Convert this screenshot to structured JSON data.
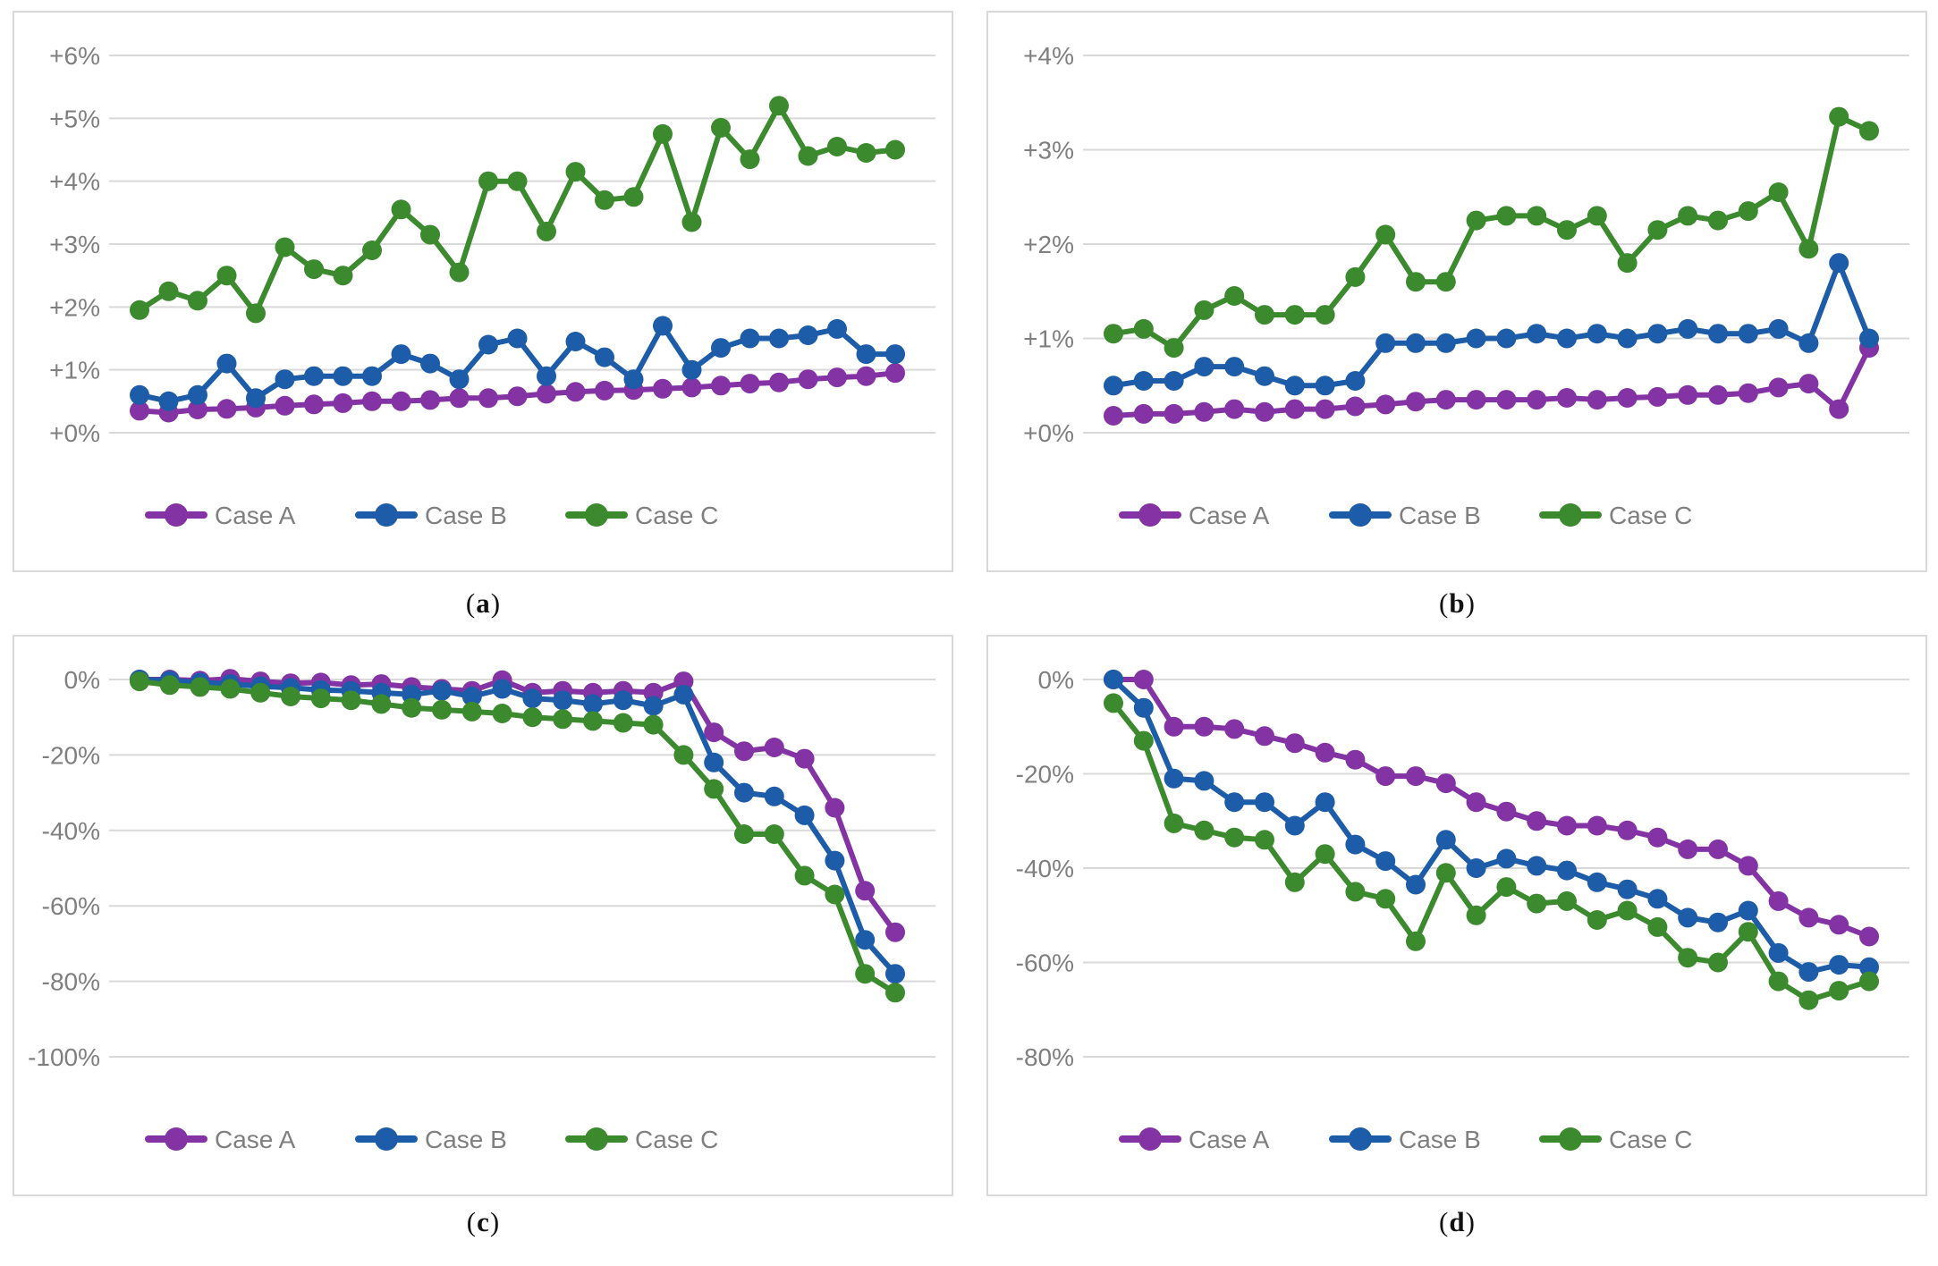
{
  "figure": {
    "description": "Four line charts (a,b,c,d), each comparing Case A, Case B and Case C with percentage change on the y-axis",
    "background_color": "#ffffff",
    "panel_border_color": "#d9d9d9",
    "gridline_color": "#d9d9d9",
    "axis_text_color": "#7f7f7f",
    "caption_color": "#111111",
    "legend_labels": [
      "Case A",
      "Case B",
      "Case C"
    ],
    "series_colors": {
      "case_a": "#8433a4",
      "case_b": "#1c5ca8",
      "case_c": "#3c8a2e"
    }
  },
  "chart_data": [
    {
      "type": "line",
      "caption_letter": "a",
      "title": "",
      "xlabel": "",
      "ylabel": "",
      "x_axis": "hidden (sequence index 1-27)",
      "grid": "horizontal only",
      "legend_position": "bottom-center",
      "y_ticks": [
        "+6%",
        "+5%",
        "+4%",
        "+3%",
        "+2%",
        "+1%",
        "+0%"
      ],
      "y_tick_values": [
        6,
        5,
        4,
        3,
        2,
        1,
        0
      ],
      "ylim": [
        0,
        6
      ],
      "series": [
        {
          "name": "Case A",
          "color": "#8433a4",
          "values": [
            0.35,
            0.32,
            0.37,
            0.38,
            0.4,
            0.43,
            0.45,
            0.47,
            0.5,
            0.5,
            0.52,
            0.55,
            0.55,
            0.58,
            0.62,
            0.65,
            0.67,
            0.68,
            0.7,
            0.72,
            0.75,
            0.78,
            0.8,
            0.85,
            0.88,
            0.9,
            0.95
          ]
        },
        {
          "name": "Case B",
          "color": "#1c5ca8",
          "values": [
            0.6,
            0.5,
            0.6,
            1.1,
            0.55,
            0.85,
            0.9,
            0.9,
            0.9,
            1.25,
            1.1,
            0.85,
            1.4,
            1.5,
            0.9,
            1.45,
            1.2,
            0.85,
            1.7,
            1.0,
            1.35,
            1.5,
            1.5,
            1.55,
            1.65,
            1.25,
            1.25
          ]
        },
        {
          "name": "Case C",
          "color": "#3c8a2e",
          "values": [
            1.95,
            2.25,
            2.1,
            2.5,
            1.9,
            2.95,
            2.6,
            2.5,
            2.9,
            3.55,
            3.15,
            2.55,
            4.0,
            4.0,
            3.2,
            4.15,
            3.7,
            3.75,
            4.75,
            3.35,
            4.85,
            4.35,
            5.2,
            4.4,
            4.55,
            4.45,
            4.5
          ]
        }
      ]
    },
    {
      "type": "line",
      "caption_letter": "b",
      "title": "",
      "xlabel": "",
      "ylabel": "",
      "x_axis": "hidden (sequence index 1-26)",
      "grid": "horizontal only",
      "legend_position": "bottom-center",
      "y_ticks": [
        "+4%",
        "+3%",
        "+2%",
        "+1%",
        "+0%"
      ],
      "y_tick_values": [
        4,
        3,
        2,
        1,
        0
      ],
      "ylim": [
        0,
        4
      ],
      "series": [
        {
          "name": "Case A",
          "color": "#8433a4",
          "values": [
            0.18,
            0.2,
            0.2,
            0.22,
            0.25,
            0.22,
            0.25,
            0.25,
            0.28,
            0.3,
            0.33,
            0.35,
            0.35,
            0.35,
            0.35,
            0.37,
            0.35,
            0.37,
            0.38,
            0.4,
            0.4,
            0.42,
            0.48,
            0.52,
            0.25,
            0.9
          ]
        },
        {
          "name": "Case B",
          "color": "#1c5ca8",
          "values": [
            0.5,
            0.55,
            0.55,
            0.7,
            0.7,
            0.6,
            0.5,
            0.5,
            0.55,
            0.95,
            0.95,
            0.95,
            1.0,
            1.0,
            1.05,
            1.0,
            1.05,
            1.0,
            1.05,
            1.1,
            1.05,
            1.05,
            1.1,
            0.95,
            1.8,
            1.0
          ]
        },
        {
          "name": "Case C",
          "color": "#3c8a2e",
          "values": [
            1.05,
            1.1,
            0.9,
            1.3,
            1.45,
            1.25,
            1.25,
            1.25,
            1.65,
            2.1,
            1.6,
            1.6,
            2.25,
            2.3,
            2.3,
            2.15,
            2.3,
            1.8,
            2.15,
            2.3,
            2.25,
            2.35,
            2.55,
            1.95,
            3.35,
            3.2
          ]
        }
      ]
    },
    {
      "type": "line",
      "caption_letter": "c",
      "title": "",
      "xlabel": "",
      "ylabel": "",
      "x_axis": "hidden (sequence index 1-26)",
      "grid": "horizontal only",
      "legend_position": "bottom-center",
      "y_ticks": [
        "0%",
        "-20%",
        "-40%",
        "-60%",
        "-80%",
        "-100%"
      ],
      "y_tick_values": [
        0,
        -20,
        -40,
        -60,
        -80,
        -100
      ],
      "ylim": [
        -100,
        0
      ],
      "series": [
        {
          "name": "Case A",
          "color": "#8433a4",
          "values": [
            0,
            0,
            -0.3,
            0.2,
            -0.5,
            -1,
            -0.8,
            -1.5,
            -1.2,
            -2,
            -2.5,
            -3,
            -0.2,
            -3.5,
            -3,
            -3.5,
            -3,
            -3.5,
            -0.5,
            -14,
            -19,
            -18,
            -21,
            -34,
            -56,
            -67
          ]
        },
        {
          "name": "Case B",
          "color": "#1c5ca8",
          "values": [
            0,
            -0.3,
            -0.8,
            -1.2,
            -1.8,
            -2.2,
            -2.8,
            -3,
            -3.5,
            -4,
            -3,
            -4.5,
            -2.5,
            -5,
            -5.5,
            -6.5,
            -5.5,
            -7,
            -4,
            -22,
            -30,
            -31,
            -36,
            -48,
            -69,
            -78
          ]
        },
        {
          "name": "Case C",
          "color": "#3c8a2e",
          "values": [
            -0.5,
            -1.5,
            -2,
            -2.5,
            -3.5,
            -4.5,
            -5,
            -5.5,
            -6.5,
            -7.5,
            -8,
            -8.5,
            -9,
            -10,
            -10.5,
            -11,
            -11.5,
            -12,
            -20,
            -29,
            -41,
            -41,
            -52,
            -57,
            -78,
            -83
          ]
        }
      ]
    },
    {
      "type": "line",
      "caption_letter": "d",
      "title": "",
      "xlabel": "",
      "ylabel": "",
      "x_axis": "hidden (sequence index 1-26)",
      "grid": "horizontal only",
      "legend_position": "bottom-center",
      "y_ticks": [
        "0%",
        "-20%",
        "-40%",
        "-60%",
        "-80%"
      ],
      "y_tick_values": [
        0,
        -20,
        -40,
        -60,
        -80
      ],
      "ylim": [
        -80,
        0
      ],
      "series": [
        {
          "name": "Case A",
          "color": "#8433a4",
          "values": [
            0,
            0,
            -10,
            -10,
            -10.5,
            -12,
            -13.5,
            -15.5,
            -17,
            -20.5,
            -20.5,
            -22,
            -26,
            -28,
            -30,
            -31,
            -31,
            -32,
            -33.5,
            -36,
            -36,
            -39.5,
            -47,
            -50.5,
            -52,
            -54.5
          ]
        },
        {
          "name": "Case B",
          "color": "#1c5ca8",
          "values": [
            0,
            -6,
            -21,
            -21.5,
            -26,
            -26,
            -31,
            -26,
            -35,
            -38.5,
            -43.5,
            -34,
            -40,
            -38,
            -39.5,
            -40.5,
            -43,
            -44.5,
            -46.5,
            -50.5,
            -51.5,
            -49,
            -58,
            -62,
            -60.5,
            -61
          ]
        },
        {
          "name": "Case C",
          "color": "#3c8a2e",
          "values": [
            -5,
            -13,
            -30.5,
            -32,
            -33.5,
            -34,
            -43,
            -37,
            -45,
            -46.5,
            -55.5,
            -41,
            -50,
            -44,
            -47.5,
            -47,
            -51,
            -49,
            -52.5,
            -59,
            -60,
            -53.5,
            -64,
            -68,
            -66,
            -64
          ]
        }
      ]
    }
  ]
}
